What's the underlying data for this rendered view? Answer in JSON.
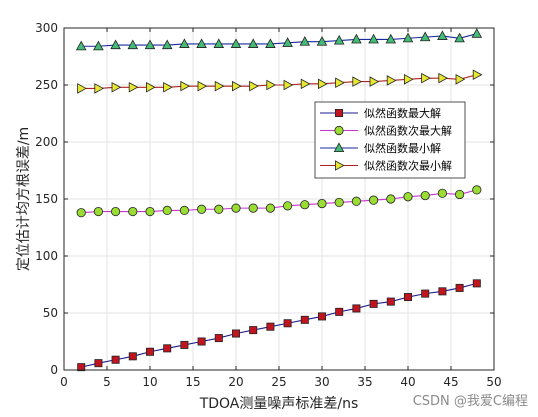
{
  "chart_data": {
    "type": "line",
    "xlabel": "TDOA测量噪声标准差/ns",
    "ylabel": "定位估计均方根误差/m",
    "xlim": [
      0,
      50
    ],
    "ylim": [
      0,
      300
    ],
    "xticks": [
      0,
      5,
      10,
      15,
      20,
      25,
      30,
      35,
      40,
      45,
      50
    ],
    "yticks": [
      0,
      50,
      100,
      150,
      200,
      250,
      300
    ],
    "grid": true,
    "legend_position": "right, upper-middle",
    "x": [
      2,
      4,
      6,
      8,
      10,
      12,
      14,
      16,
      18,
      20,
      22,
      24,
      26,
      28,
      30,
      32,
      34,
      36,
      38,
      40,
      42,
      44,
      46,
      48
    ],
    "series": [
      {
        "name": "似然函数最大解",
        "marker": "square",
        "line_color": "#1a1a8c",
        "marker_color": "#c0141e",
        "values": [
          2.5,
          6,
          9,
          12,
          16,
          19,
          22,
          25,
          28,
          32,
          35,
          38,
          41,
          44,
          47,
          51,
          54,
          58,
          60,
          64,
          67,
          69,
          72,
          76
        ]
      },
      {
        "name": "似然函数次最大解",
        "marker": "circle",
        "line_color": "#cc33cc",
        "marker_color": "#99dd33",
        "values": [
          138,
          139,
          139,
          139,
          139,
          140,
          140,
          141,
          141,
          142,
          142,
          142,
          144,
          145,
          146,
          147,
          148,
          149,
          150,
          152,
          153,
          155,
          154,
          158
        ]
      },
      {
        "name": "似然函数最小解",
        "marker": "triangle-up",
        "line_color": "#1a2a9c",
        "marker_color": "#44bb77",
        "values": [
          284,
          284,
          285,
          285,
          285,
          285,
          286,
          286,
          286,
          286,
          286,
          286,
          287,
          288,
          288,
          289,
          290,
          290,
          290,
          291,
          292,
          293,
          291,
          295
        ]
      },
      {
        "name": "似然函数次最小解",
        "marker": "triangle-right",
        "line_color": "#b02020",
        "marker_color": "#e6e633",
        "values": [
          247,
          247,
          248,
          248,
          248,
          248,
          249,
          249,
          249,
          249,
          249,
          250,
          250,
          251,
          251,
          252,
          253,
          253,
          254,
          255,
          256,
          256,
          255,
          259
        ]
      }
    ]
  },
  "watermark": "CSDN @我爱C编程"
}
